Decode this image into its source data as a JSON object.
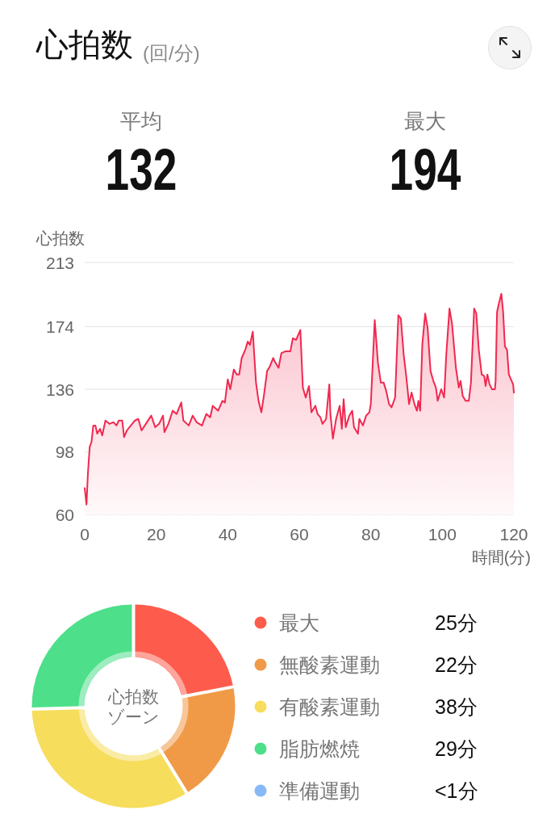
{
  "chart_data": [
    {
      "type": "other",
      "title": "心拍数",
      "subtitle": "(回/分)",
      "annotations": [
        "平均",
        "132",
        "最大",
        "194"
      ]
    },
    {
      "type": "area",
      "ylabel": "心拍数",
      "xlabel": "時間(分)",
      "color": "#f0284f",
      "grid": "y",
      "xlim": [
        0,
        120
      ],
      "ylim": [
        60,
        213
      ],
      "xticks": [
        0,
        20,
        40,
        60,
        80,
        100,
        120
      ],
      "yticks": [
        60,
        98,
        136,
        174,
        213
      ],
      "x": [
        0,
        0.5,
        0.9,
        1.4,
        1.9,
        2.4,
        3.0,
        3.5,
        4.3,
        4.9,
        5.8,
        6.9,
        8.0,
        8.9,
        9.5,
        10.5,
        11.0,
        11.8,
        12.9,
        14.0,
        15.0,
        15.9,
        17.1,
        18.6,
        19.7,
        20.8,
        21.9,
        22.3,
        23.4,
        24.6,
        25.7,
        27.0,
        27.6,
        29.1,
        30.2,
        31.3,
        32.8,
        34.0,
        35.1,
        35.8,
        37.3,
        38.5,
        39.2,
        40.0,
        40.7,
        41.7,
        42.5,
        43.2,
        43.9,
        44.9,
        45.6,
        46.2,
        47.0,
        47.9,
        48.6,
        49.4,
        50.1,
        51.0,
        51.8,
        52.7,
        53.1,
        54.2,
        55.0,
        56.1,
        57.5,
        58.2,
        59.1,
        60.3,
        61.0,
        61.8,
        62.7,
        63.4,
        64.5,
        65.1,
        65.9,
        66.5,
        67.5,
        68.4,
        68.7,
        69.4,
        70.3,
        71.3,
        71.9,
        72.4,
        73.0,
        74.0,
        74.8,
        75.3,
        76.4,
        76.8,
        77.8,
        78.7,
        79.6,
        80.0,
        81.1,
        82.0,
        82.8,
        83.6,
        84.3,
        85.1,
        85.8,
        86.8,
        87.7,
        88.4,
        89.2,
        89.9,
        90.7,
        91.4,
        92.2,
        92.9,
        93.3,
        93.8,
        94.4,
        95.2,
        95.9,
        96.7,
        97.5,
        98.2,
        98.7,
        99.7,
        100.5,
        101.1,
        102.0,
        102.7,
        103.8,
        104.6,
        105.1,
        105.7,
        106.5,
        107.4,
        108.0,
        108.9,
        109.5,
        110.2,
        111.0,
        111.7,
        112.1,
        112.6,
        113.2,
        113.9,
        114.7,
        114.9,
        115.3,
        115.8,
        116.5,
        117.0,
        117.5,
        118.1,
        118.6,
        119.2,
        119.8,
        120.0
      ],
      "values": [
        76,
        66,
        85,
        101,
        104,
        114,
        114,
        109,
        112,
        108,
        117,
        115,
        116,
        114,
        117,
        117,
        107,
        111,
        114,
        117,
        118,
        111,
        115,
        120,
        113,
        115,
        120,
        110,
        115,
        123,
        121,
        128,
        117,
        114,
        120,
        116,
        114,
        121,
        119,
        126,
        123,
        129,
        128,
        142,
        136,
        148,
        145,
        145,
        155,
        160,
        165,
        163,
        171,
        140,
        129,
        122,
        132,
        147,
        150,
        155,
        153,
        149,
        158,
        159,
        159,
        167,
        166,
        172,
        137,
        131,
        138,
        122,
        126,
        121,
        119,
        115,
        118,
        139,
        121,
        106,
        118,
        126,
        112,
        130,
        113,
        120,
        123,
        113,
        109,
        118,
        114,
        120,
        122,
        127,
        178,
        152,
        140,
        140,
        135,
        127,
        125,
        131,
        181,
        179,
        157,
        144,
        127,
        134,
        127,
        123,
        129,
        123,
        163,
        182,
        173,
        147,
        141,
        137,
        129,
        136,
        131,
        157,
        185,
        176,
        149,
        137,
        141,
        132,
        129,
        129,
        140,
        185,
        182,
        160,
        145,
        144,
        138,
        145,
        139,
        136,
        136,
        141,
        183,
        188,
        194,
        183,
        162,
        160,
        145,
        142,
        139,
        134
      ]
    },
    {
      "type": "donut",
      "title": "心拍数ゾーン",
      "categories": [
        "最大",
        "無酸素運動",
        "有酸素運動",
        "脂肪燃焼",
        "準備運動"
      ],
      "values": [
        25,
        22,
        38,
        29,
        0
      ],
      "colors": [
        "#fd5c4c",
        "#f09a48",
        "#f6dd5c",
        "#4ddf8a",
        "#88b9f7"
      ],
      "value_labels": [
        "25分",
        "22分",
        "38分",
        "29分",
        "<1分"
      ],
      "legend": "right"
    }
  ]
}
